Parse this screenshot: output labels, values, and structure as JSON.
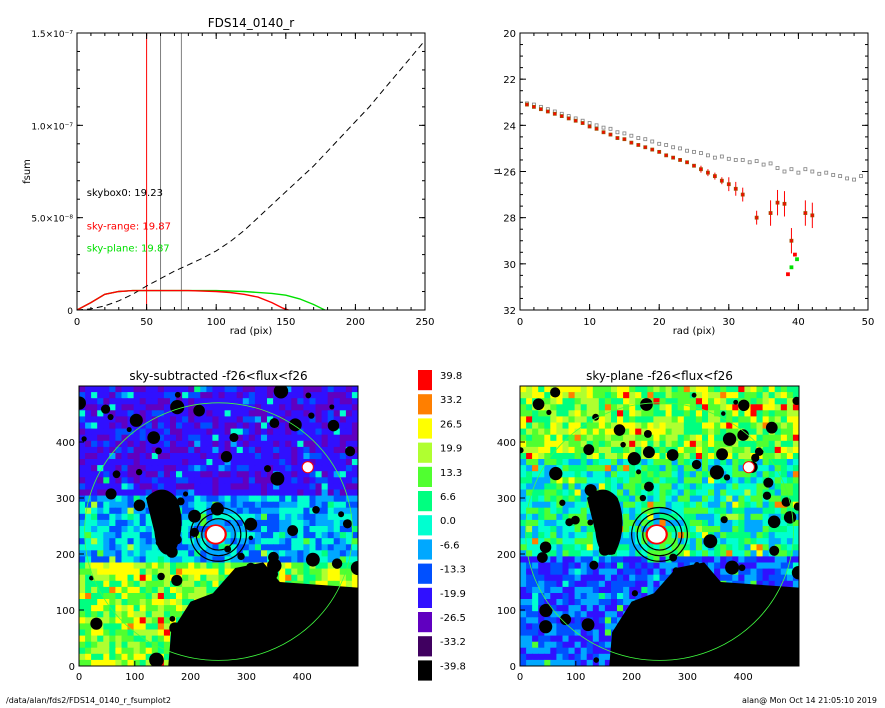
{
  "footer": {
    "path": "/data/alan/fds2/FDS14_0140_r_fsumplot2",
    "stamp": "alan@  Mon Oct 14 21:05:10 2019"
  },
  "colors": {
    "red": "#ff0000",
    "green": "#00e000",
    "grey": "#808080",
    "brown": "#a05000"
  },
  "chart_data": [
    {
      "type": "line",
      "title": "FDS14_0140_r",
      "xlabel": "rad (pix)",
      "ylabel": "fsum",
      "xlim": [
        0,
        250
      ],
      "ylim": [
        0,
        1.5e-07
      ],
      "xticks": [
        0,
        50,
        100,
        150,
        200,
        250
      ],
      "yticks": [
        {
          "v": 0,
          "label": "0"
        },
        {
          "v": 5e-08,
          "label": "5.0×10⁻⁸"
        },
        {
          "v": 1e-07,
          "label": "1.0×10⁻⁷"
        },
        {
          "v": 1.5e-07,
          "label": "1.5×10⁻⁷"
        }
      ],
      "vlines": [
        {
          "x": 50,
          "color": "red"
        },
        {
          "x": 60,
          "color": "grey"
        },
        {
          "x": 75,
          "color": "grey"
        }
      ],
      "annotations": [
        {
          "text": "skybox0: 19.23",
          "color": "black",
          "x": 30,
          "y": 6e-08
        },
        {
          "text": "sky-range: 19.87",
          "color": "red",
          "x": 30,
          "y": 4.2e-08
        },
        {
          "text": "sky-plane: 19.87",
          "color": "green",
          "x": 30,
          "y": 3e-08
        }
      ],
      "series": [
        {
          "color": "black",
          "dash": true,
          "x": [
            0,
            10,
            20,
            30,
            40,
            50,
            60,
            70,
            80,
            90,
            100,
            110,
            120,
            130,
            140,
            150,
            160,
            170,
            180,
            190,
            200,
            210,
            220,
            230,
            240,
            250
          ],
          "y": [
            0,
            6e-10,
            2.2e-09,
            5e-09,
            8.5e-09,
            1.3e-08,
            1.7e-08,
            2.1e-08,
            2.45e-08,
            2.8e-08,
            3.2e-08,
            3.7e-08,
            4.3e-08,
            5e-08,
            5.7e-08,
            6.4e-08,
            7.1e-08,
            7.8e-08,
            8.6e-08,
            9.4e-08,
            1.02e-07,
            1.1e-07,
            1.19e-07,
            1.28e-07,
            1.37e-07,
            1.46e-07
          ]
        },
        {
          "color": "green",
          "x": [
            0,
            10,
            20,
            30,
            40,
            50,
            60,
            80,
            100,
            120,
            140,
            150,
            160,
            170,
            178
          ],
          "y": [
            0,
            4e-09,
            8.5e-09,
            1e-08,
            1.05e-08,
            1.05e-08,
            1.05e-08,
            1.05e-08,
            1.05e-08,
            1e-08,
            9e-09,
            8e-09,
            6e-09,
            3e-09,
            0
          ]
        },
        {
          "color": "red",
          "x": [
            0,
            10,
            20,
            30,
            40,
            50,
            60,
            80,
            100,
            110,
            120,
            130,
            140,
            148,
            152
          ],
          "y": [
            0,
            4e-09,
            8.5e-09,
            1e-08,
            1.05e-08,
            1.05e-08,
            1.05e-08,
            1.05e-08,
            1e-08,
            9.5e-09,
            8.5e-09,
            7e-09,
            4e-09,
            1e-09,
            0
          ]
        }
      ]
    },
    {
      "type": "scatter",
      "title": "",
      "xlabel": "rad (pix)",
      "ylabel": "μ",
      "xlim": [
        0,
        50
      ],
      "ylim": [
        32,
        20
      ],
      "xticks": [
        0,
        10,
        20,
        30,
        40,
        50
      ],
      "yticks": [
        20,
        22,
        24,
        26,
        28,
        30,
        32
      ],
      "series": [
        {
          "color": "grey",
          "x": [
            1,
            2,
            3,
            4,
            5,
            6,
            7,
            8,
            9,
            10,
            11,
            12,
            13,
            14,
            15,
            16,
            17,
            18,
            19,
            20,
            21,
            22,
            23,
            24,
            25,
            26,
            27,
            28,
            29,
            30,
            31,
            32,
            33,
            34,
            35,
            36,
            37,
            38,
            39,
            40,
            41,
            42,
            43,
            44,
            45,
            46,
            47,
            48,
            49
          ],
          "y": [
            23.05,
            23.1,
            23.2,
            23.3,
            23.4,
            23.5,
            23.6,
            23.7,
            23.8,
            23.9,
            24.0,
            24.1,
            24.15,
            24.3,
            24.35,
            24.45,
            24.55,
            24.6,
            24.7,
            24.8,
            24.85,
            24.95,
            25.0,
            25.1,
            25.15,
            25.2,
            25.3,
            25.4,
            25.35,
            25.45,
            25.5,
            25.5,
            25.6,
            25.55,
            25.7,
            25.65,
            25.85,
            26.0,
            25.9,
            26.05,
            25.9,
            26.0,
            26.1,
            26.05,
            26.15,
            26.2,
            26.3,
            26.35,
            26.2
          ]
        },
        {
          "color": "red",
          "x": [
            1,
            2,
            3,
            4,
            5,
            6,
            7,
            8,
            9,
            10,
            11,
            12,
            13,
            14,
            15,
            16,
            17,
            18,
            19,
            20,
            21,
            22,
            23,
            24,
            25,
            26,
            27,
            28,
            29,
            30,
            31,
            32,
            34,
            36,
            37,
            38,
            39,
            41,
            42
          ],
          "y": [
            23.1,
            23.2,
            23.3,
            23.4,
            23.5,
            23.6,
            23.7,
            23.8,
            23.9,
            24.05,
            24.15,
            24.3,
            24.4,
            24.55,
            24.6,
            24.75,
            24.85,
            24.95,
            25.05,
            25.15,
            25.3,
            25.4,
            25.5,
            25.6,
            25.75,
            25.9,
            26.05,
            26.2,
            26.4,
            26.55,
            26.75,
            27.0,
            28.0,
            27.8,
            27.35,
            27.4,
            29.0,
            27.8,
            27.9
          ]
        },
        {
          "color": "green",
          "x": [
            39,
            39.8
          ],
          "y": [
            30.15,
            29.8
          ]
        },
        {
          "color": "red",
          "x": [
            38.5,
            39.5
          ],
          "y": [
            30.45,
            29.6
          ]
        }
      ]
    },
    {
      "type": "heatmap",
      "title": "sky-subtracted -f26<flux<f26",
      "xlim": [
        0,
        500
      ],
      "ylim": [
        0,
        500
      ],
      "xticks": [
        0,
        100,
        200,
        300,
        400
      ],
      "yticks": [
        0,
        100,
        200,
        300,
        400
      ]
    },
    {
      "type": "heatmap",
      "title": "sky-plane -f26<flux<f26",
      "xlim": [
        0,
        500
      ],
      "ylim": [
        0,
        500
      ],
      "xticks": [
        0,
        100,
        200,
        300,
        400
      ],
      "yticks": [
        0,
        100,
        200,
        300,
        400
      ]
    }
  ],
  "colorbar": {
    "labels": [
      "39.8",
      "33.2",
      "26.5",
      "19.9",
      "13.3",
      "6.6",
      "0.0",
      "-6.6",
      "-13.3",
      "-19.9",
      "-26.5",
      "-33.2",
      "-39.8"
    ],
    "colors": [
      "#ff0000",
      "#ff7f00",
      "#ffff00",
      "#b0ff30",
      "#50ff30",
      "#00ff80",
      "#00ffd0",
      "#00a8ff",
      "#0050ff",
      "#3010ff",
      "#6000c0",
      "#400060",
      "#000000"
    ]
  }
}
